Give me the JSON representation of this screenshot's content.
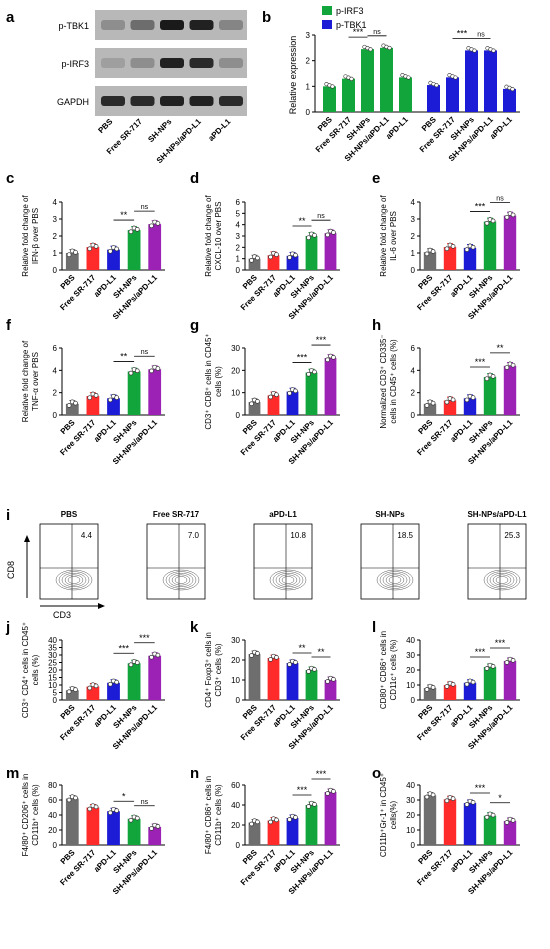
{
  "colors": {
    "PBS": "#6e6e6e",
    "Free SR-717": "#ff2a2a",
    "aPD-L1": "#1c1cd6",
    "SH-NPs": "#12a53c",
    "SH-NPs/aPD-L1": "#9b22b4",
    "p-IRF3": "#12a53c",
    "p-TBK1": "#1c1cd6"
  },
  "western_blot": {
    "panel_letter": "a",
    "rows": [
      "p-TBK1",
      "p-IRF3",
      "GAPDH"
    ],
    "columns": [
      "PBS",
      "Free SR-717",
      "SH-NPs",
      "SH-NPs/aPD-L1",
      "aPD-L1"
    ]
  },
  "flow": {
    "panel_letter": "i",
    "groups": [
      "PBS",
      "Free SR-717",
      "aPD-L1",
      "SH-NPs",
      "SH-NPs/aPD-L1"
    ],
    "percentages": [
      "4.4",
      "7.0",
      "10.8",
      "18.5",
      "25.3"
    ],
    "y_axis": "CD8",
    "x_axis": "CD3"
  },
  "chart_data": [
    {
      "panel": "b",
      "type": "bar",
      "ylabel": "Relative expression",
      "ylim": [
        0,
        3
      ],
      "yticks": [
        "0",
        "1",
        "2",
        "3"
      ],
      "legend": [
        "p-IRF3",
        "p-TBK1"
      ],
      "legend_position": "top-left",
      "groups": [
        {
          "name": "p-IRF3",
          "categories": [
            "PBS",
            "Free SR-717",
            "SH-NPs",
            "SH-NPs/aPD-L1",
            "aPD-L1"
          ],
          "values": [
            1.0,
            1.3,
            2.45,
            2.5,
            1.35
          ]
        },
        {
          "name": "p-TBK1",
          "categories": [
            "PBS",
            "Free SR-717",
            "SH-NPs",
            "SH-NPs/aPD-L1",
            "aPD-L1"
          ],
          "values": [
            1.05,
            1.35,
            2.4,
            2.4,
            0.9
          ]
        }
      ],
      "annotations": [
        "***",
        "ns",
        "***",
        "ns"
      ]
    },
    {
      "panel": "c",
      "type": "bar",
      "ylabel": "Relative fold change of IFN-β over PBS",
      "ylim": [
        0,
        4
      ],
      "yticks": [
        "0",
        "1",
        "2",
        "3",
        "4"
      ],
      "categories": [
        "PBS",
        "Free SR-717",
        "aPD-L1",
        "SH-NPs",
        "SH-NPs/aPD-L1"
      ],
      "values": [
        1.0,
        1.35,
        1.2,
        2.35,
        2.7
      ],
      "annotations": [
        "**",
        "ns"
      ]
    },
    {
      "panel": "d",
      "type": "bar",
      "ylabel": "Relative fold change of CXCL-10 over PBS",
      "ylim": [
        0,
        6
      ],
      "yticks": [
        "0",
        "1",
        "2",
        "3",
        "4",
        "5",
        "6"
      ],
      "categories": [
        "PBS",
        "Free SR-717",
        "aPD-L1",
        "SH-NPs",
        "SH-NPs/aPD-L1"
      ],
      "values": [
        1.0,
        1.3,
        1.25,
        3.0,
        3.25
      ],
      "annotations": [
        "**",
        "ns"
      ]
    },
    {
      "panel": "e",
      "type": "bar",
      "ylabel": "Relative fold change of IL-6 over PBS",
      "ylim": [
        0,
        4
      ],
      "yticks": [
        "0",
        "1",
        "2",
        "3",
        "4"
      ],
      "categories": [
        "PBS",
        "Free SR-717",
        "aPD-L1",
        "SH-NPs",
        "SH-NPs/aPD-L1"
      ],
      "values": [
        1.05,
        1.35,
        1.3,
        2.85,
        3.2
      ],
      "annotations": [
        "***",
        "ns"
      ]
    },
    {
      "panel": "f",
      "type": "bar",
      "ylabel": "Relative fold change of TNF-α over PBS",
      "ylim": [
        0,
        6
      ],
      "yticks": [
        "0",
        "2",
        "4",
        "6"
      ],
      "categories": [
        "PBS",
        "Free SR-717",
        "aPD-L1",
        "SH-NPs",
        "SH-NPs/aPD-L1"
      ],
      "values": [
        1.0,
        1.7,
        1.5,
        3.9,
        4.1
      ],
      "annotations": [
        "**",
        "ns"
      ]
    },
    {
      "panel": "g",
      "type": "bar",
      "ylabel": "CD3⁺ CD8⁺ cells in CD45⁺ cells (%)",
      "ylim": [
        0,
        30
      ],
      "yticks": [
        "0",
        "10",
        "20",
        "30"
      ],
      "categories": [
        "PBS",
        "Free SR-717",
        "aPD-L1",
        "SH-NPs",
        "SH-NPs/aPD-L1"
      ],
      "values": [
        5.8,
        8.8,
        10.5,
        19.0,
        25.5
      ],
      "annotations": [
        "***",
        "***"
      ]
    },
    {
      "panel": "h",
      "type": "bar",
      "ylabel": "Normalized CD3⁺ CD335⁻ cells in CD45⁺ cells (%)",
      "ylim": [
        0,
        6
      ],
      "yticks": [
        "0",
        "2",
        "4",
        "6"
      ],
      "categories": [
        "PBS",
        "Free SR-717",
        "aPD-L1",
        "SH-NPs",
        "SH-NPs/aPD-L1"
      ],
      "values": [
        1.0,
        1.3,
        1.5,
        3.4,
        4.4
      ],
      "annotations": [
        "***",
        "**"
      ]
    },
    {
      "panel": "j",
      "type": "bar",
      "ylabel": "CD3⁺ CD4⁺ cells in CD45⁺ cells (%)",
      "ylim": [
        0,
        40
      ],
      "yticks": [
        "0",
        "5",
        "10",
        "15",
        "20",
        "25",
        "30",
        "35",
        "40"
      ],
      "categories": [
        "PBS",
        "Free SR-717",
        "aPD-L1",
        "SH-NPs",
        "SH-NPs/aPD-L1"
      ],
      "values": [
        6.5,
        9.0,
        11.5,
        24.5,
        29.5
      ],
      "annotations": [
        "***",
        "***"
      ]
    },
    {
      "panel": "k",
      "type": "bar",
      "ylabel": "CD4⁺ Foxp3⁺ cells in CD3⁺ cells (%)",
      "ylim": [
        0,
        30
      ],
      "yticks": [
        "0",
        "10",
        "20",
        "30"
      ],
      "categories": [
        "PBS",
        "Free SR-717",
        "aPD-L1",
        "SH-NPs",
        "SH-NPs/aPD-L1"
      ],
      "values": [
        23.0,
        21.0,
        18.5,
        15.0,
        10.0
      ],
      "annotations": [
        "**",
        "**"
      ]
    },
    {
      "panel": "l",
      "type": "bar",
      "ylabel": "CD80⁺ CD86⁺ cells in CD11c⁺ cells (%)",
      "ylim": [
        0,
        40
      ],
      "yticks": [
        "0",
        "10",
        "20",
        "30",
        "40"
      ],
      "categories": [
        "PBS",
        "Free SR-717",
        "aPD-L1",
        "SH-NPs",
        "SH-NPs/aPD-L1"
      ],
      "values": [
        8.0,
        10.0,
        11.5,
        22.0,
        26.0
      ],
      "annotations": [
        "***",
        "***"
      ]
    },
    {
      "panel": "m",
      "type": "bar",
      "ylabel": "F4/80⁺ CD206⁺ cells in CD11b⁺ cells (%)",
      "ylim": [
        0,
        80
      ],
      "yticks": [
        "0",
        "20",
        "40",
        "60",
        "80"
      ],
      "categories": [
        "PBS",
        "Free SR-717",
        "aPD-L1",
        "SH-NPs",
        "SH-NPs/aPD-L1"
      ],
      "values": [
        62.0,
        50.0,
        45.0,
        35.0,
        24.0
      ],
      "annotations": [
        "*",
        "ns"
      ]
    },
    {
      "panel": "n",
      "type": "bar",
      "ylabel": "F4/80⁺ CD86⁺ cells in CD11b⁺ cells (%)",
      "ylim": [
        0,
        60
      ],
      "yticks": [
        "0",
        "20",
        "40",
        "60"
      ],
      "categories": [
        "PBS",
        "Free SR-717",
        "aPD-L1",
        "SH-NPs",
        "SH-NPs/aPD-L1"
      ],
      "values": [
        22.5,
        24.5,
        27.0,
        40.0,
        53.0
      ],
      "annotations": [
        "***",
        "***"
      ]
    },
    {
      "panel": "o",
      "type": "bar",
      "ylabel": "CD11b⁺Gr-1⁺ in CD45⁺ cells(%)",
      "ylim": [
        0,
        40
      ],
      "yticks": [
        "0",
        "10",
        "20",
        "30",
        "40"
      ],
      "categories": [
        "PBS",
        "Free SR-717",
        "aPD-L1",
        "SH-NPs",
        "SH-NPs/aPD-L1"
      ],
      "values": [
        33.0,
        30.5,
        28.0,
        19.5,
        16.0
      ],
      "annotations": [
        "***",
        "*"
      ]
    }
  ]
}
